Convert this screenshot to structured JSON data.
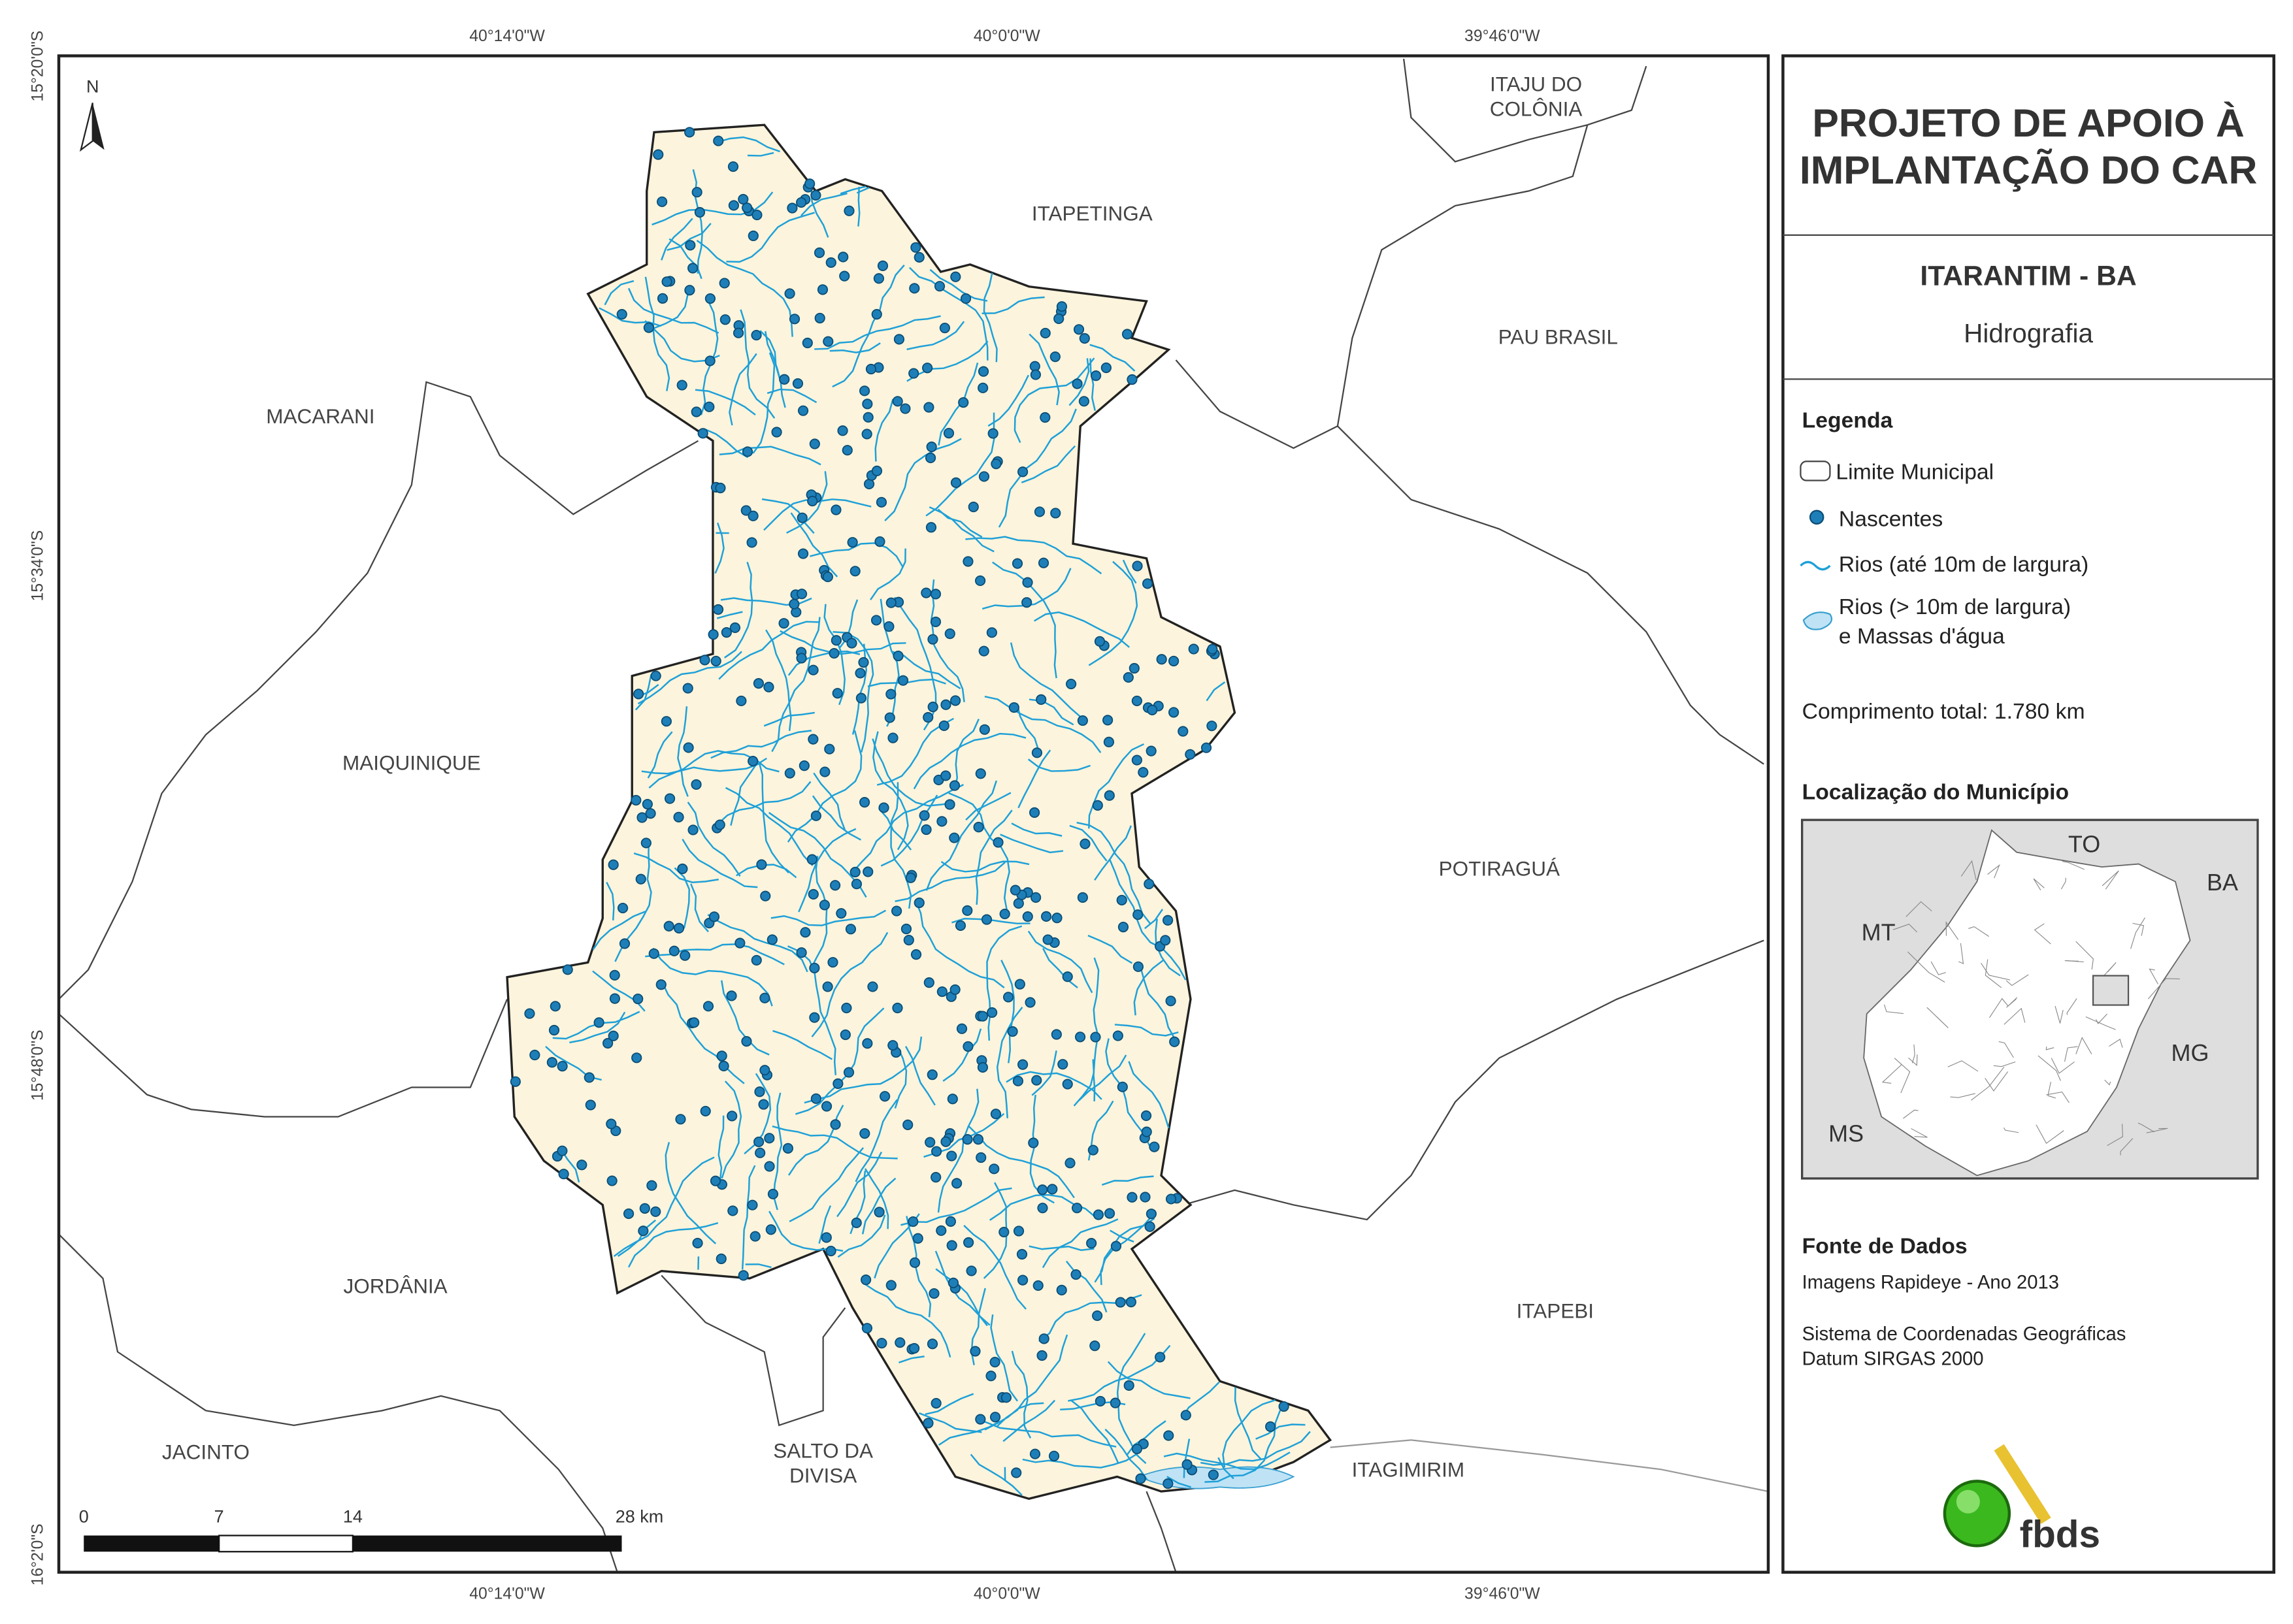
{
  "map": {
    "coordinates": {
      "top": [
        "40°14'0\"W",
        "40°0'0\"W",
        "39°46'0\"W"
      ],
      "bottom": [
        "40°14'0\"W",
        "40°0'0\"W",
        "39°46'0\"W"
      ],
      "left": [
        "15°20'0\"S",
        "15°34'0\"S",
        "15°48'0\"S",
        "16°2'0\"S"
      ]
    },
    "north": "N",
    "places": [
      {
        "lines": [
          "ITAJU DO",
          "COLÔNIA"
        ]
      },
      {
        "lines": [
          "ITAPETINGA"
        ]
      },
      {
        "lines": [
          "PAU BRASIL"
        ]
      },
      {
        "lines": [
          "MACARANI"
        ]
      },
      {
        "lines": [
          "MAIQUINIQUE"
        ]
      },
      {
        "lines": [
          "POTIRAGUÁ"
        ]
      },
      {
        "lines": [
          "JORDÂNIA"
        ]
      },
      {
        "lines": [
          "ITAPEBI"
        ]
      },
      {
        "lines": [
          "JACINTO"
        ]
      },
      {
        "lines": [
          "SALTO DA",
          "DIVISA"
        ]
      },
      {
        "lines": [
          "ITAGIMIRIM"
        ]
      }
    ],
    "scale": [
      "0",
      "7",
      "14",
      "28 km"
    ]
  },
  "panel": {
    "title": [
      "PROJETO DE APOIO À",
      "IMPLANTAÇÃO DO CAR"
    ],
    "municipality": "ITARANTIM - BA",
    "theme": "Hidrografia",
    "legend": {
      "title": "Legenda",
      "items": [
        {
          "lines": [
            "Limite Municipal"
          ]
        },
        {
          "lines": [
            "Nascentes"
          ]
        },
        {
          "lines": [
            "Rios (até 10m de largura)"
          ]
        },
        {
          "lines": [
            "Rios (> 10m de largura)",
            "e Massas d'água"
          ]
        }
      ]
    },
    "length": "Comprimento total:  1.780 km",
    "location": {
      "title": "Localização do Município",
      "labels": [
        "TO",
        "BA",
        "MT",
        "MG",
        "MS"
      ]
    },
    "sources": {
      "title": "Fonte de Dados",
      "lines": [
        "Imagens Rapideye - Ano 2013",
        "Sistema de Coordenadas Geográficas",
        "Datum SIRGAS 2000"
      ]
    },
    "logo": "fbds"
  }
}
